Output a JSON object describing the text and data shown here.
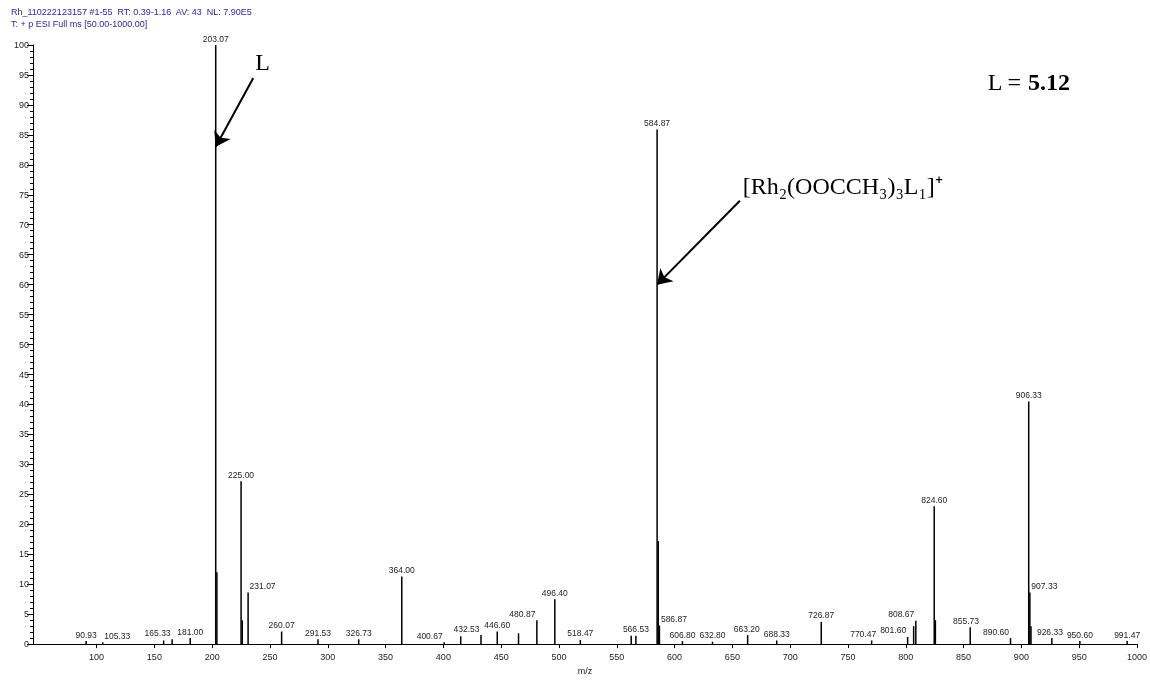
{
  "chart_data": {
    "type": "bar",
    "title": "Rh_110222123157 #1-55  RT: 0.39-1.16  AV: 43  NL: 7.90E5",
    "subtitle": "T: + p ESI Full ms [50.00-1000.00]",
    "xlabel": "m/z",
    "color": "#000000",
    "x": [
      90.93,
      105.33,
      158,
      165.33,
      181.0,
      203.07,
      204.07,
      225.0,
      226.0,
      231.07,
      260.07,
      291.53,
      326.73,
      364.0,
      400.67,
      415.0,
      432.53,
      446.6,
      465.0,
      480.87,
      496.4,
      518.47,
      562.5,
      566.53,
      584.87,
      585.87,
      586.87,
      606.8,
      632.8,
      663.2,
      688.33,
      726.87,
      770.47,
      801.6,
      806.8,
      808.67,
      824.6,
      825.6,
      855.73,
      890.6,
      906.33,
      907.33,
      908.3,
      926.33,
      950.6,
      991.47
    ],
    "values": [
      0.5,
      0.3,
      0.6,
      0.8,
      1.0,
      100,
      12,
      27.2,
      4,
      8.6,
      2.1,
      0.8,
      0.8,
      11.3,
      0.3,
      1.3,
      1.5,
      2.1,
      1.8,
      4.0,
      7.5,
      0.7,
      1.4,
      1.4,
      85.9,
      17.2,
      3.1,
      0.5,
      0.4,
      1.5,
      0.6,
      3.7,
      0.6,
      1.2,
      3.0,
      3.9,
      23.0,
      4.0,
      2.8,
      1.0,
      40.5,
      8.6,
      3.0,
      1.0,
      0.5,
      0.5
    ],
    "xlim": [
      45,
      1000
    ],
    "xticks": [
      100,
      150,
      200,
      250,
      300,
      350,
      400,
      450,
      500,
      550,
      600,
      650,
      700,
      750,
      800,
      850,
      900,
      950,
      1000
    ],
    "ylim": [
      0,
      100
    ],
    "yticks": [
      0,
      5,
      10,
      15,
      20,
      25,
      30,
      35,
      40,
      45,
      50,
      55,
      60,
      65,
      70,
      75,
      80,
      85,
      90,
      95,
      100
    ],
    "annotations": [
      "L = 5.12",
      {
        "text": "L",
        "x": 203.07,
        "y": 83
      },
      {
        "text": "[Rh₂(OOCCH₃)₃L₁]⁺",
        "x": 584.87,
        "y": 60
      },
      {
        "text": "90.93",
        "x": 90.93,
        "y": 0.5
      },
      {
        "text": "105.33",
        "x": 105.33,
        "y": 0.3
      },
      {
        "text": "165.33",
        "x": 165.33,
        "y": 0.8
      },
      {
        "text": "181.00",
        "x": 181.0,
        "y": 1.0
      },
      {
        "text": "203.07",
        "x": 203.07,
        "y": 100
      },
      {
        "text": "225.00",
        "x": 225.0,
        "y": 27.2
      },
      {
        "text": "231.07",
        "x": 231.07,
        "y": 8.6
      },
      {
        "text": "260.07",
        "x": 260.07,
        "y": 2.1
      },
      {
        "text": "291.53",
        "x": 291.53,
        "y": 0.8
      },
      {
        "text": "326.73",
        "x": 326.73,
        "y": 0.8
      },
      {
        "text": "364.00",
        "x": 364.0,
        "y": 11.3
      },
      {
        "text": "400.67",
        "x": 400.67,
        "y": 0.3
      },
      {
        "text": "432.53",
        "x": 432.53,
        "y": 1.5
      },
      {
        "text": "446.60",
        "x": 446.6,
        "y": 2.1
      },
      {
        "text": "480.87",
        "x": 480.87,
        "y": 4.0
      },
      {
        "text": "496.40",
        "x": 496.4,
        "y": 7.5
      },
      {
        "text": "518.47",
        "x": 518.47,
        "y": 0.7
      },
      {
        "text": "566.53",
        "x": 566.53,
        "y": 1.4
      },
      {
        "text": "584.87",
        "x": 584.87,
        "y": 85.9
      },
      {
        "text": "586.87",
        "x": 586.87,
        "y": 3.1
      },
      {
        "text": "606.80",
        "x": 606.8,
        "y": 0.5
      },
      {
        "text": "632.80",
        "x": 632.8,
        "y": 0.4
      },
      {
        "text": "663.20",
        "x": 663.2,
        "y": 1.5
      },
      {
        "text": "688.33",
        "x": 688.33,
        "y": 0.6
      },
      {
        "text": "726.87",
        "x": 726.87,
        "y": 3.7
      },
      {
        "text": "770.47",
        "x": 770.47,
        "y": 0.6
      },
      {
        "text": "801.60",
        "x": 801.6,
        "y": 1.2
      },
      {
        "text": "808.67",
        "x": 808.67,
        "y": 3.9
      },
      {
        "text": "824.60",
        "x": 824.6,
        "y": 23.0
      },
      {
        "text": "855.73",
        "x": 855.73,
        "y": 2.8
      },
      {
        "text": "890.60",
        "x": 890.6,
        "y": 1.0
      },
      {
        "text": "906.33",
        "x": 906.33,
        "y": 40.5
      },
      {
        "text": "907.33",
        "x": 907.33,
        "y": 8.6
      },
      {
        "text": "926.33",
        "x": 926.33,
        "y": 1.0
      },
      {
        "text": "950.60",
        "x": 950.6,
        "y": 0.5
      },
      {
        "text": "991.47",
        "x": 991.47,
        "y": 0.5
      }
    ],
    "grid": false
  }
}
